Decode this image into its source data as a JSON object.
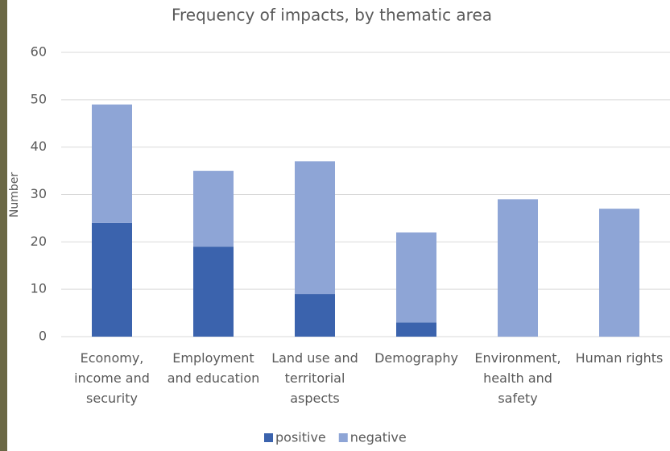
{
  "chart_data": {
    "type": "stacked-bar",
    "title": "Frequency of impacts, by thematic area",
    "y_label": "Number",
    "categories": [
      "Economy, income and security",
      "Employment and education",
      "Land use and territorial aspects",
      "Demography",
      "Environment, health and safety",
      "Human rights"
    ],
    "series": [
      {
        "name": "positive",
        "color": "#3b63ad",
        "values": [
          24,
          19,
          9,
          3,
          0,
          0
        ]
      },
      {
        "name": "negative",
        "color": "#8ea5d6",
        "values": [
          25,
          16,
          28,
          19,
          29,
          27
        ]
      }
    ],
    "ylim": [
      0,
      60
    ],
    "yticks": [
      0,
      10,
      20,
      30,
      40,
      50,
      60
    ],
    "grid": true,
    "legend": "bottom"
  }
}
